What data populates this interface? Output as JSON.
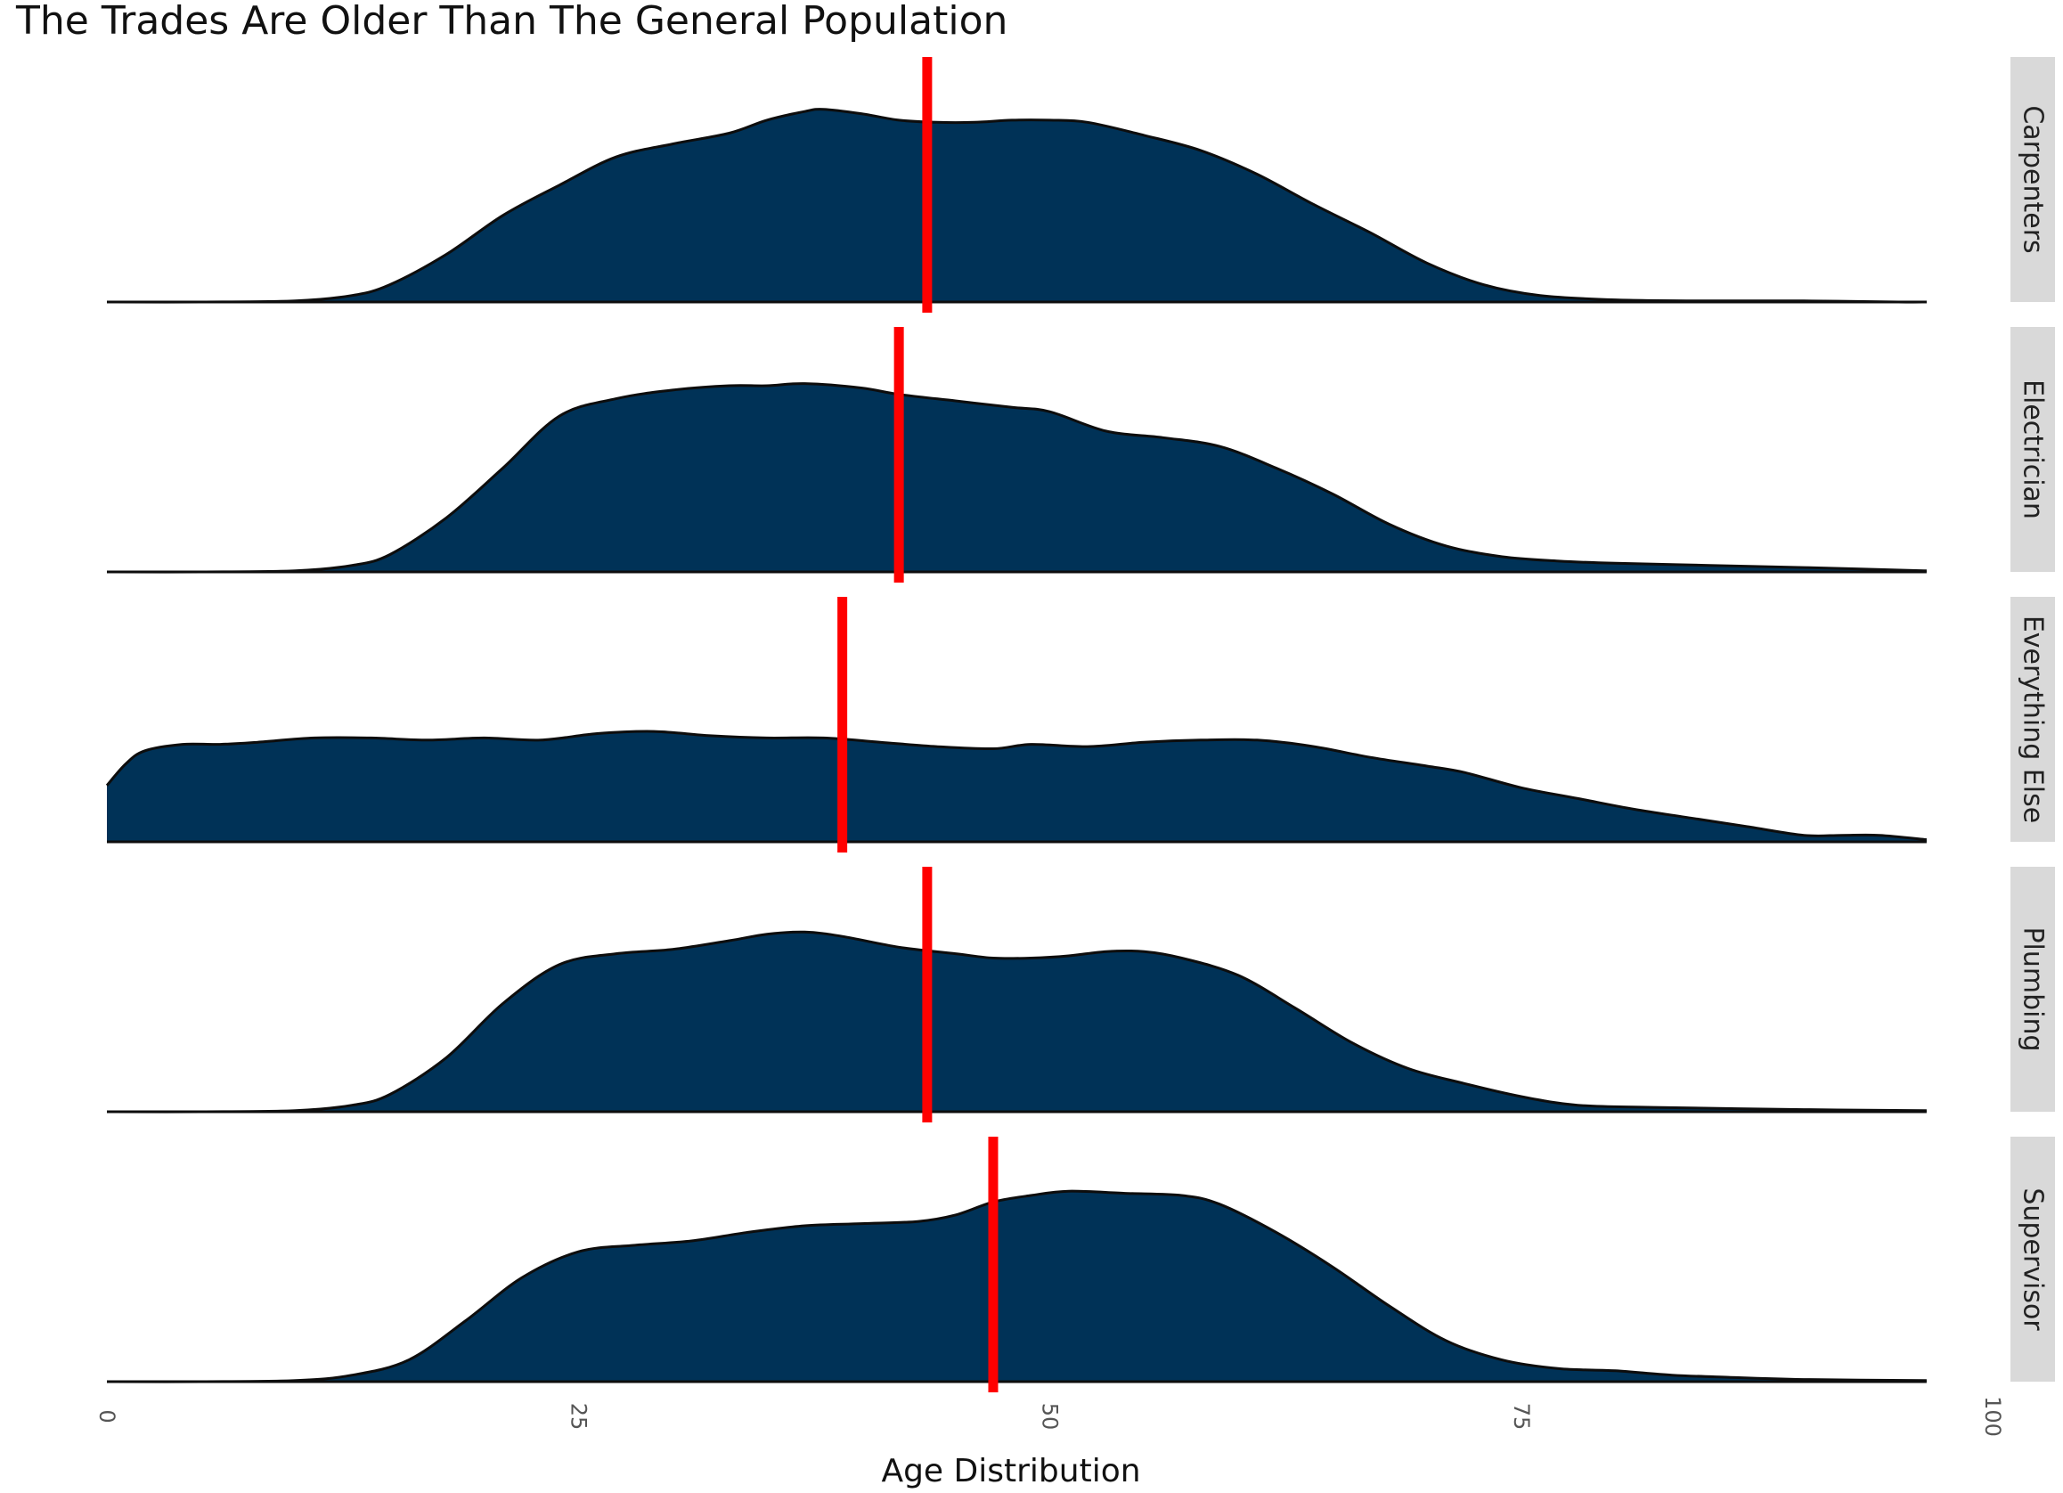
{
  "chart_data": {
    "type": "area",
    "title": "The Trades Are Older Than The General Population",
    "xlabel": "Age Distribution",
    "xlim": [
      0,
      100
    ],
    "x_ticks": [
      0,
      25,
      50,
      75,
      100
    ],
    "x_tick_labels": [
      "0",
      "25",
      "50",
      "75",
      "100"
    ],
    "facets": [
      {
        "name": "Carpenters",
        "mean_age": 43.5,
        "density": [
          [
            0,
            0.0
          ],
          [
            5,
            0.0
          ],
          [
            10,
            0.005
          ],
          [
            13,
            0.03
          ],
          [
            15,
            0.08
          ],
          [
            18,
            0.22
          ],
          [
            21,
            0.4
          ],
          [
            24,
            0.54
          ],
          [
            27,
            0.67
          ],
          [
            30,
            0.73
          ],
          [
            33,
            0.78
          ],
          [
            35,
            0.84
          ],
          [
            37,
            0.88
          ],
          [
            38,
            0.89
          ],
          [
            40,
            0.87
          ],
          [
            42,
            0.84
          ],
          [
            44,
            0.83
          ],
          [
            46,
            0.83
          ],
          [
            48,
            0.84
          ],
          [
            50,
            0.84
          ],
          [
            52,
            0.83
          ],
          [
            55,
            0.77
          ],
          [
            58,
            0.7
          ],
          [
            61,
            0.59
          ],
          [
            64,
            0.45
          ],
          [
            67,
            0.32
          ],
          [
            70,
            0.18
          ],
          [
            73,
            0.08
          ],
          [
            76,
            0.03
          ],
          [
            80,
            0.01
          ],
          [
            85,
            0.005
          ],
          [
            90,
            0.005
          ],
          [
            95,
            0.0
          ],
          [
            96.5,
            0.0
          ]
        ]
      },
      {
        "name": "Electrician",
        "mean_age": 42.0,
        "density": [
          [
            0,
            0.0
          ],
          [
            5,
            0.0
          ],
          [
            10,
            0.005
          ],
          [
            13,
            0.03
          ],
          [
            15,
            0.08
          ],
          [
            18,
            0.25
          ],
          [
            21,
            0.48
          ],
          [
            24,
            0.72
          ],
          [
            27,
            0.8
          ],
          [
            30,
            0.84
          ],
          [
            33,
            0.86
          ],
          [
            35,
            0.86
          ],
          [
            37,
            0.87
          ],
          [
            40,
            0.85
          ],
          [
            42,
            0.82
          ],
          [
            45,
            0.79
          ],
          [
            48,
            0.76
          ],
          [
            50,
            0.74
          ],
          [
            53,
            0.65
          ],
          [
            56,
            0.62
          ],
          [
            59,
            0.58
          ],
          [
            62,
            0.48
          ],
          [
            65,
            0.36
          ],
          [
            68,
            0.22
          ],
          [
            71,
            0.12
          ],
          [
            74,
            0.07
          ],
          [
            77,
            0.05
          ],
          [
            80,
            0.04
          ],
          [
            85,
            0.03
          ],
          [
            90,
            0.02
          ],
          [
            96.5,
            0.005
          ]
        ]
      },
      {
        "name": "Everything Else",
        "mean_age": 39.0,
        "density": [
          [
            0,
            0.26
          ],
          [
            1,
            0.36
          ],
          [
            2,
            0.42
          ],
          [
            4,
            0.45
          ],
          [
            6,
            0.45
          ],
          [
            8,
            0.46
          ],
          [
            11,
            0.48
          ],
          [
            14,
            0.48
          ],
          [
            17,
            0.47
          ],
          [
            20,
            0.48
          ],
          [
            23,
            0.47
          ],
          [
            26,
            0.5
          ],
          [
            29,
            0.51
          ],
          [
            32,
            0.49
          ],
          [
            35,
            0.48
          ],
          [
            38,
            0.48
          ],
          [
            41,
            0.46
          ],
          [
            44,
            0.44
          ],
          [
            47,
            0.43
          ],
          [
            49,
            0.45
          ],
          [
            52,
            0.44
          ],
          [
            55,
            0.46
          ],
          [
            58,
            0.47
          ],
          [
            61,
            0.47
          ],
          [
            64,
            0.44
          ],
          [
            67,
            0.39
          ],
          [
            70,
            0.35
          ],
          [
            72,
            0.32
          ],
          [
            75,
            0.25
          ],
          [
            78,
            0.2
          ],
          [
            81,
            0.15
          ],
          [
            84,
            0.11
          ],
          [
            87,
            0.07
          ],
          [
            90,
            0.03
          ],
          [
            92,
            0.03
          ],
          [
            94,
            0.03
          ],
          [
            96.5,
            0.01
          ]
        ]
      },
      {
        "name": "Plumbing",
        "mean_age": 43.5,
        "density": [
          [
            0,
            0.0
          ],
          [
            5,
            0.0
          ],
          [
            10,
            0.005
          ],
          [
            13,
            0.03
          ],
          [
            15,
            0.08
          ],
          [
            18,
            0.25
          ],
          [
            21,
            0.5
          ],
          [
            24,
            0.68
          ],
          [
            27,
            0.73
          ],
          [
            30,
            0.75
          ],
          [
            33,
            0.79
          ],
          [
            35,
            0.82
          ],
          [
            37,
            0.83
          ],
          [
            39,
            0.81
          ],
          [
            42,
            0.76
          ],
          [
            45,
            0.73
          ],
          [
            47,
            0.71
          ],
          [
            49,
            0.71
          ],
          [
            51,
            0.72
          ],
          [
            53,
            0.74
          ],
          [
            55,
            0.74
          ],
          [
            57,
            0.71
          ],
          [
            60,
            0.63
          ],
          [
            63,
            0.48
          ],
          [
            66,
            0.32
          ],
          [
            69,
            0.2
          ],
          [
            72,
            0.13
          ],
          [
            75,
            0.07
          ],
          [
            78,
            0.03
          ],
          [
            82,
            0.02
          ],
          [
            90,
            0.01
          ],
          [
            96.5,
            0.005
          ]
        ]
      },
      {
        "name": "Supervisor",
        "mean_age": 47.0,
        "density": [
          [
            0,
            0.0
          ],
          [
            5,
            0.0
          ],
          [
            10,
            0.005
          ],
          [
            13,
            0.03
          ],
          [
            16,
            0.1
          ],
          [
            19,
            0.28
          ],
          [
            22,
            0.48
          ],
          [
            25,
            0.6
          ],
          [
            28,
            0.63
          ],
          [
            31,
            0.65
          ],
          [
            34,
            0.69
          ],
          [
            37,
            0.72
          ],
          [
            40,
            0.73
          ],
          [
            43,
            0.74
          ],
          [
            45,
            0.77
          ],
          [
            47,
            0.83
          ],
          [
            49,
            0.86
          ],
          [
            51,
            0.88
          ],
          [
            54,
            0.87
          ],
          [
            57,
            0.86
          ],
          [
            59,
            0.82
          ],
          [
            62,
            0.69
          ],
          [
            65,
            0.53
          ],
          [
            68,
            0.35
          ],
          [
            71,
            0.19
          ],
          [
            74,
            0.1
          ],
          [
            77,
            0.06
          ],
          [
            80,
            0.05
          ],
          [
            83,
            0.03
          ],
          [
            86,
            0.02
          ],
          [
            90,
            0.01
          ],
          [
            96.5,
            0.005
          ]
        ]
      }
    ],
    "colors": {
      "fill": "#003257",
      "outline": "#0d0d0d",
      "mean_line": "#ff0000",
      "strip_bg": "#d9d9d9"
    },
    "grid": false,
    "legend": "none"
  }
}
